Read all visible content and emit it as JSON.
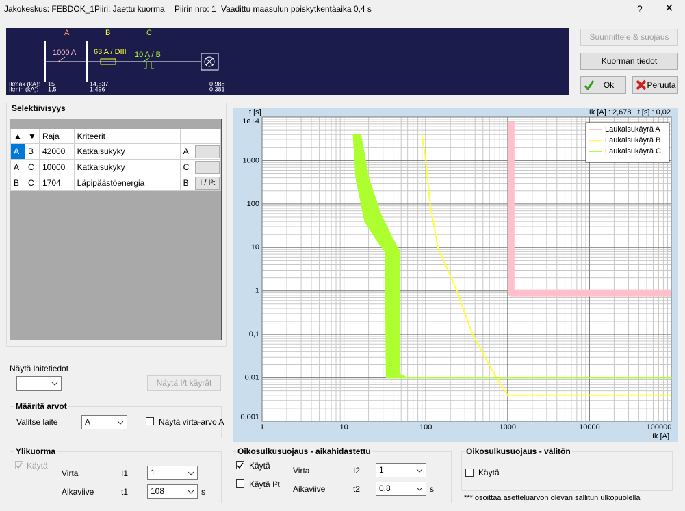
{
  "window": {
    "title_parts": [
      "Jakokeskus: FEBDOK_1",
      "Piiri: Jaettu kuorma",
      "Piirin nro: 1",
      "Vaadittu maasulun poiskytkentäaika 0,4 s"
    ],
    "help": "?",
    "close": "×"
  },
  "schematic": {
    "labels": [
      "A",
      "B",
      "C"
    ],
    "devices": [
      "1000 A",
      "63 A / DIII",
      "10 A / B"
    ],
    "ikmax_label": "Ikmax (kA):",
    "ikmin_label": "Ikmin (kA):",
    "ikmax": [
      "15",
      "14,537",
      "0,988"
    ],
    "ikmin": [
      "1,5",
      "1,496",
      "0,381"
    ]
  },
  "buttons": {
    "design": "Suunnittele & suojaus",
    "load": "Kuorman tiedot",
    "ok": "Ok",
    "cancel": "Peruuta"
  },
  "selectivity": {
    "title": "Selektiivisyys",
    "headers": [
      "▲",
      "▼",
      "Raja",
      "Kriteerit"
    ],
    "rows": [
      {
        "cells": [
          "A",
          "B",
          "42000",
          "Katkaisukyky",
          "A"
        ]
      },
      {
        "cells": [
          "A",
          "C",
          "10000",
          "Katkaisukyky",
          "C"
        ]
      },
      {
        "cells": [
          "B",
          "C",
          "1704",
          "Läpipäästöenergia",
          "B"
        ],
        "button": "I / I²t"
      }
    ]
  },
  "device_info": {
    "label": "Näytä laitetiedot",
    "button": "Näytä I/t käyrät"
  },
  "set_values": {
    "title": "Määritä arvot",
    "device_label": "Valitse laite",
    "device": "A",
    "show_current": "Näytä virta-arvo A"
  },
  "overload": {
    "title": "Ylikuorma",
    "use": "Käytä",
    "current": "Virta",
    "i_symbol": "I1",
    "i_value": "1",
    "delay": "Aikaviive",
    "t_symbol": "t1",
    "t_value": "108",
    "unit": "s"
  },
  "short_delayed": {
    "title": "Oikosulkusuojaus - aikahidastettu",
    "use": "Käytä",
    "use_i2t": "Käytä I²t",
    "current": "Virta",
    "i_symbol": "I2",
    "i_value": "1",
    "delay": "Aikaviive",
    "t_symbol": "t2",
    "t_value": "0,8",
    "unit": "s"
  },
  "short_instant": {
    "title": "Oikosulkusuojaus - välitön",
    "use": "Käytä",
    "note": "*** osoittaa asetteluarvon olevan sallitun ulkopuolella"
  },
  "chart_data": {
    "type": "line",
    "y_label": "t [s]",
    "x_label": "Ik [A]",
    "readout": "Ik [A] : 2,678   t [s] : 0,02",
    "log_x": true,
    "log_y": true,
    "grid": true,
    "legend": "upper right",
    "xlim": [
      1,
      100000
    ],
    "ylim": [
      0.001,
      10000
    ],
    "xticks": [
      1,
      10,
      100,
      1000,
      10000,
      100000
    ],
    "yticks": [
      {
        "value": 0.001,
        "label": "0,001"
      },
      {
        "value": 0.01,
        "label": "0,01"
      },
      {
        "value": 0.1,
        "label": "0,1"
      },
      1,
      10,
      100,
      1000,
      {
        "value": 10000,
        "label": "1e+4"
      }
    ],
    "series": [
      {
        "name": "Laukaisukäyrä A",
        "color": "#ffc0cb",
        "style": "band",
        "x": [
          1100,
          1100,
          100000
        ],
        "values": [
          8000,
          0.9,
          0.9
        ]
      },
      {
        "name": "Laukaisukäyrä B",
        "color": "#ffff33",
        "style": "line",
        "x": [
          90,
          100,
          113,
          141,
          240,
          372,
          730,
          1000,
          100000
        ],
        "values": [
          4000,
          1000,
          100,
          10,
          1,
          0.1,
          0.01,
          0.004,
          0.004
        ]
      },
      {
        "name": "Laukaisukäyrä C",
        "color": "#adff2f",
        "style": "area",
        "x": [
          13,
          14,
          18,
          25,
          32,
          33,
          100000,
          60,
          48,
          48,
          40,
          28,
          20,
          16
        ],
        "values": [
          4000,
          400,
          40,
          15,
          8,
          0.01,
          0.01,
          0.01,
          0.012,
          8,
          15,
          60,
          400,
          4000
        ]
      }
    ]
  }
}
